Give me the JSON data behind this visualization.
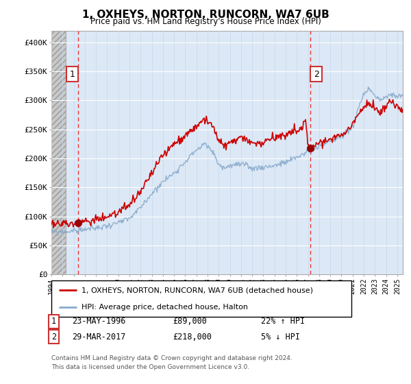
{
  "title": "1, OXHEYS, NORTON, RUNCORN, WA7 6UB",
  "subtitle": "Price paid vs. HM Land Registry's House Price Index (HPI)",
  "legend_line1": "1, OXHEYS, NORTON, RUNCORN, WA7 6UB (detached house)",
  "legend_line2": "HPI: Average price, detached house, Halton",
  "footer1": "Contains HM Land Registry data © Crown copyright and database right 2024.",
  "footer2": "This data is licensed under the Open Government Licence v3.0.",
  "point1_label": "1",
  "point1_date": "23-MAY-1996",
  "point1_price": "£89,000",
  "point1_hpi": "22% ↑ HPI",
  "point2_label": "2",
  "point2_date": "29-MAR-2017",
  "point2_price": "£218,000",
  "point2_hpi": "5% ↓ HPI",
  "xlim_start": 1994.0,
  "xlim_end": 2025.5,
  "ylim_bottom": 0,
  "ylim_top": 420000,
  "yticks": [
    0,
    50000,
    100000,
    150000,
    200000,
    250000,
    300000,
    350000,
    400000
  ],
  "ytick_labels": [
    "£0",
    "£50K",
    "£100K",
    "£150K",
    "£200K",
    "£250K",
    "£300K",
    "£350K",
    "£400K"
  ],
  "sale1_x": 1996.38,
  "sale1_y": 89000,
  "sale2_x": 2017.24,
  "sale2_y": 218000,
  "line_color_red": "#cc0000",
  "line_color_blue": "#88aacc",
  "bg_plot": "#dce8f5",
  "vline_color": "#ee3333",
  "hatch_end": 1995.3
}
